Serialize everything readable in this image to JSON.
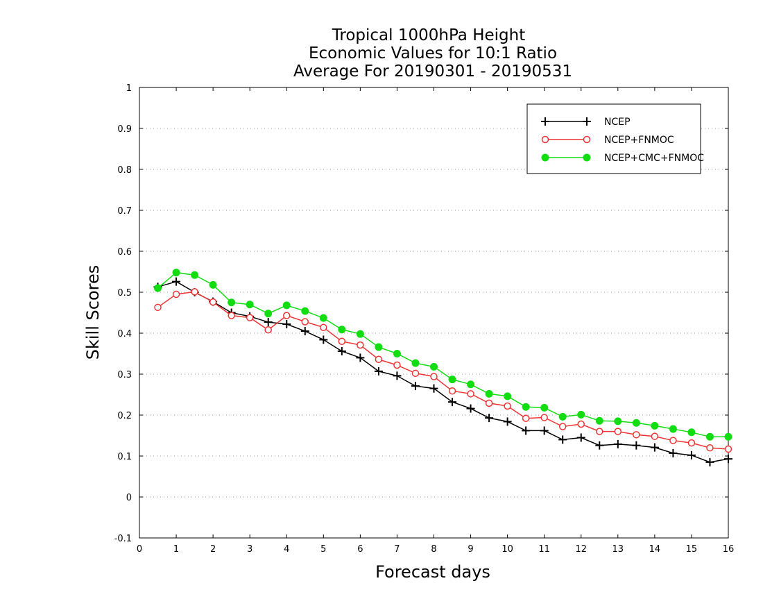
{
  "chart_data": {
    "type": "line",
    "title_lines": [
      "Tropical 1000hPa Height",
      "Economic Values for 10:1 Ratio",
      "Average For 20190301 - 20190531"
    ],
    "xlabel": "Forecast days",
    "ylabel": "Skill Scores",
    "xlim": [
      0,
      16
    ],
    "ylim": [
      -0.1,
      1
    ],
    "x_ticks": [
      "0",
      "1",
      "2",
      "3",
      "4",
      "5",
      "6",
      "7",
      "8",
      "9",
      "10",
      "11",
      "12",
      "13",
      "14",
      "15",
      "16"
    ],
    "y_ticks": [
      "-0.1",
      "0",
      "0.1",
      "0.2",
      "0.3",
      "0.4",
      "0.5",
      "0.6",
      "0.7",
      "0.8",
      "0.9",
      "1"
    ],
    "grid": "horizontal dotted",
    "legend_position": "top-right",
    "x": [
      0.5,
      1,
      1.5,
      2,
      2.5,
      3,
      3.5,
      4,
      4.5,
      5,
      5.5,
      6,
      6.5,
      7,
      7.5,
      8,
      8.5,
      9,
      9.5,
      10,
      10.5,
      11,
      11.5,
      12,
      12.5,
      13,
      13.5,
      14,
      14.5,
      15,
      15.5,
      16
    ],
    "series": [
      {
        "name": "NCEP",
        "color": "#000000",
        "marker": "plus",
        "values": [
          0.513,
          0.526,
          0.5,
          0.477,
          0.45,
          0.441,
          0.427,
          0.422,
          0.405,
          0.384,
          0.356,
          0.34,
          0.307,
          0.296,
          0.271,
          0.265,
          0.232,
          0.216,
          0.193,
          0.184,
          0.162,
          0.162,
          0.14,
          0.145,
          0.126,
          0.129,
          0.126,
          0.121,
          0.107,
          0.102,
          0.085,
          0.093
        ]
      },
      {
        "name": "NCEP+FNMOC",
        "color": "#ee3333",
        "marker": "open-circle",
        "values": [
          0.463,
          0.495,
          0.501,
          0.476,
          0.443,
          0.438,
          0.408,
          0.443,
          0.428,
          0.414,
          0.38,
          0.371,
          0.336,
          0.322,
          0.302,
          0.294,
          0.259,
          0.252,
          0.229,
          0.222,
          0.192,
          0.194,
          0.172,
          0.178,
          0.16,
          0.16,
          0.152,
          0.148,
          0.138,
          0.132,
          0.12,
          0.117
        ]
      },
      {
        "name": "NCEP+CMC+FNMOC",
        "color": "#11dd11",
        "marker": "filled-circle",
        "values": [
          0.51,
          0.548,
          0.542,
          0.518,
          0.475,
          0.47,
          0.448,
          0.468,
          0.454,
          0.437,
          0.409,
          0.398,
          0.366,
          0.35,
          0.327,
          0.318,
          0.287,
          0.275,
          0.252,
          0.246,
          0.22,
          0.218,
          0.196,
          0.201,
          0.186,
          0.185,
          0.181,
          0.174,
          0.166,
          0.158,
          0.147,
          0.147
        ]
      }
    ]
  }
}
